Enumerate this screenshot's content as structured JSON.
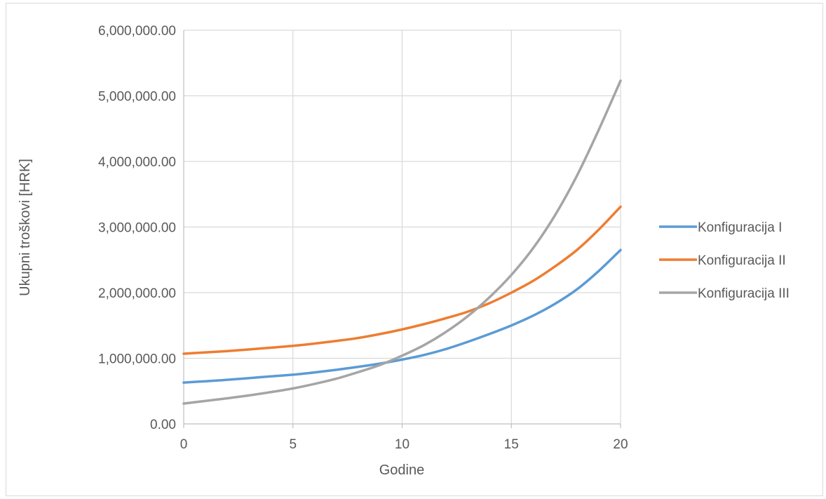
{
  "chart_data": {
    "type": "line",
    "xlabel": "Godine",
    "ylabel": "Ukupni troškovi [HRK]",
    "xlim": [
      0,
      20
    ],
    "ylim": [
      0,
      6000000
    ],
    "x_ticks": [
      "0",
      "5",
      "10",
      "15",
      "20"
    ],
    "y_ticks": [
      "0.00",
      "1,000,000.00",
      "2,000,000.00",
      "3,000,000.00",
      "4,000,000.00",
      "5,000,000.00",
      "6,000,000.00"
    ],
    "grid": true,
    "legend_position": "right",
    "x": [
      0,
      1,
      2,
      3,
      4,
      5,
      6,
      7,
      8,
      9,
      10,
      11,
      12,
      13,
      14,
      15,
      16,
      17,
      18,
      19,
      20
    ],
    "series": [
      {
        "name": "Konfiguracija I",
        "color": "#5b9bd5",
        "values": [
          630000,
          650000,
          672000,
          698000,
          725000,
          750000,
          785000,
          825000,
          870000,
          920000,
          980000,
          1050000,
          1140000,
          1250000,
          1370000,
          1500000,
          1650000,
          1830000,
          2050000,
          2330000,
          2650000
        ]
      },
      {
        "name": "Konfiguracija II",
        "color": "#ed7d31",
        "values": [
          1070000,
          1090000,
          1110000,
          1135000,
          1162000,
          1190000,
          1225000,
          1265000,
          1310000,
          1370000,
          1440000,
          1520000,
          1610000,
          1710000,
          1840000,
          2000000,
          2180000,
          2400000,
          2650000,
          2960000,
          3310000
        ]
      },
      {
        "name": "Konfiguracija III",
        "color": "#a5a5a5",
        "values": [
          310000,
          350000,
          390000,
          435000,
          485000,
          540000,
          610000,
          690000,
          790000,
          900000,
          1040000,
          1200000,
          1400000,
          1640000,
          1930000,
          2270000,
          2680000,
          3180000,
          3780000,
          4480000,
          5230000
        ]
      }
    ]
  }
}
